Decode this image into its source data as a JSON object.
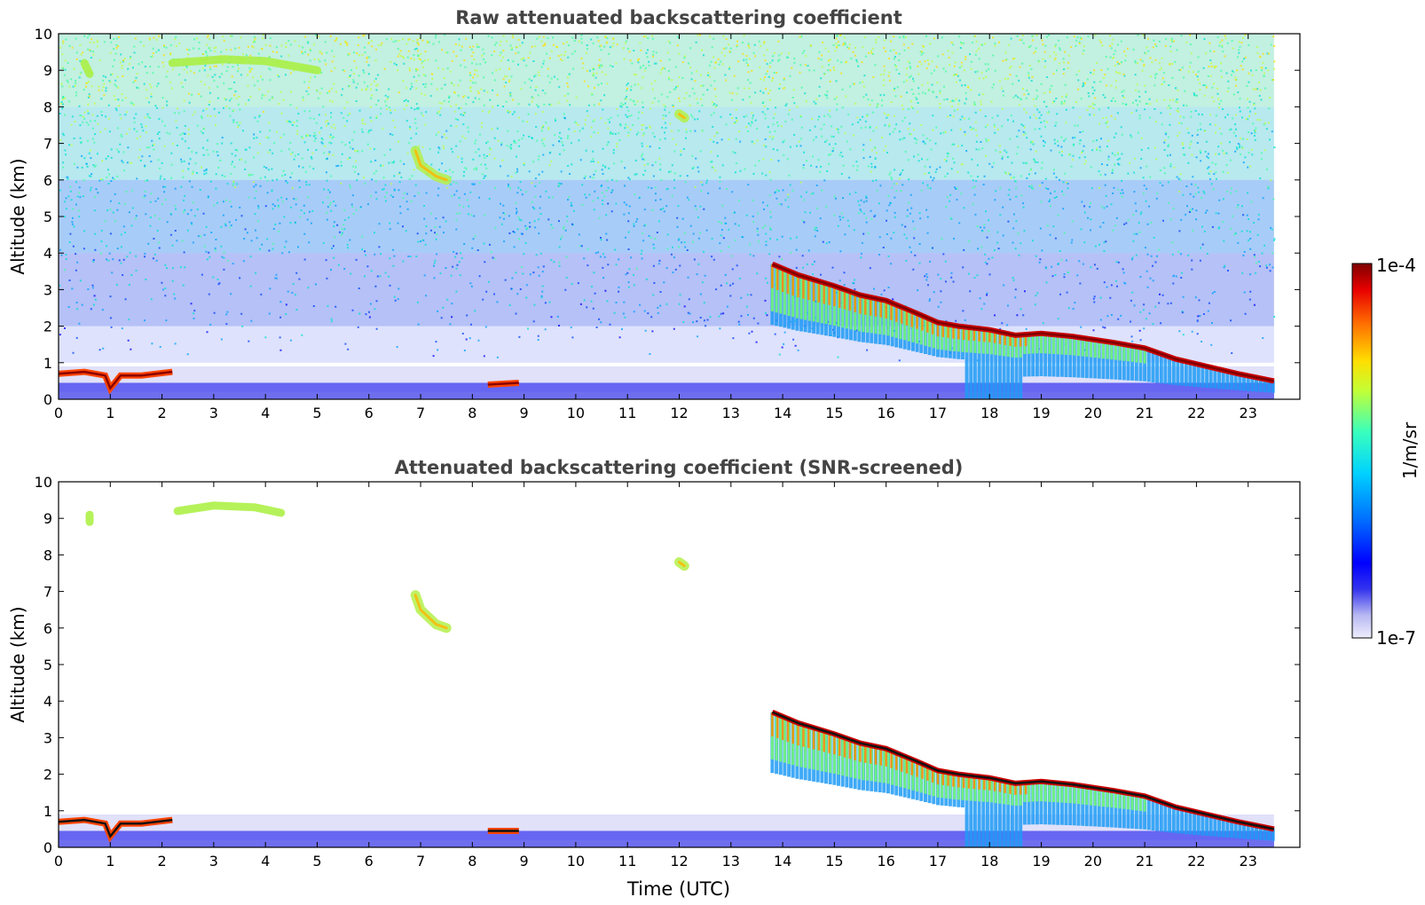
{
  "chart_data": [
    {
      "type": "heatmap",
      "title": "Raw attenuated backscattering coefficient",
      "xlabel": "",
      "ylabel": "Altitude (km)",
      "xlim": [
        0,
        24
      ],
      "ylim": [
        0,
        10
      ],
      "x_ticks": [
        0,
        1,
        2,
        3,
        4,
        5,
        6,
        7,
        8,
        9,
        10,
        11,
        12,
        13,
        14,
        15,
        16,
        17,
        18,
        19,
        20,
        21,
        22,
        23
      ],
      "y_ticks": [
        0,
        1,
        2,
        3,
        4,
        5,
        6,
        7,
        8,
        9,
        10
      ],
      "data_end_time": 23.5,
      "background_noise": true,
      "features": [
        {
          "kind": "boundary_layer_top",
          "points": [
            [
              0,
              0.7
            ],
            [
              0.5,
              0.75
            ],
            [
              0.9,
              0.65
            ],
            [
              1.0,
              0.3
            ],
            [
              1.2,
              0.65
            ],
            [
              1.6,
              0.65
            ],
            [
              2.2,
              0.75
            ]
          ]
        },
        {
          "kind": "boundary_layer_top",
          "points": [
            [
              8.3,
              0.4
            ],
            [
              8.9,
              0.45
            ]
          ]
        },
        {
          "kind": "cloud_base",
          "points": [
            [
              13.8,
              3.7
            ],
            [
              14.3,
              3.4
            ],
            [
              15,
              3.1
            ],
            [
              15.5,
              2.85
            ],
            [
              16,
              2.7
            ],
            [
              16.6,
              2.35
            ],
            [
              17,
              2.1
            ],
            [
              17.4,
              2.0
            ],
            [
              18,
              1.9
            ],
            [
              18.5,
              1.75
            ],
            [
              19,
              1.8
            ],
            [
              19.6,
              1.72
            ],
            [
              20.4,
              1.55
            ],
            [
              21,
              1.4
            ],
            [
              21.6,
              1.1
            ],
            [
              22.2,
              0.9
            ],
            [
              22.8,
              0.7
            ],
            [
              23.5,
              0.5
            ]
          ]
        },
        {
          "kind": "cirrus",
          "points": [
            [
              2.2,
              9.2
            ],
            [
              3.2,
              9.3
            ],
            [
              4,
              9.25
            ],
            [
              5,
              9.0
            ]
          ]
        },
        {
          "kind": "cirrus",
          "points": [
            [
              0.5,
              9.2
            ],
            [
              0.6,
              8.9
            ]
          ]
        },
        {
          "kind": "aerosol_plume",
          "points": [
            [
              6.9,
              6.8
            ],
            [
              7.0,
              6.4
            ],
            [
              7.3,
              6.1
            ],
            [
              7.5,
              6.0
            ]
          ]
        },
        {
          "kind": "aerosol_plume",
          "points": [
            [
              12.0,
              7.8
            ],
            [
              12.1,
              7.7
            ]
          ]
        }
      ]
    },
    {
      "type": "heatmap",
      "title": "Attenuated backscattering coefficient (SNR-screened)",
      "xlabel": "Time (UTC)",
      "ylabel": "Altitude (km)",
      "xlim": [
        0,
        24
      ],
      "ylim": [
        0,
        10
      ],
      "x_ticks": [
        0,
        1,
        2,
        3,
        4,
        5,
        6,
        7,
        8,
        9,
        10,
        11,
        12,
        13,
        14,
        15,
        16,
        17,
        18,
        19,
        20,
        21,
        22,
        23
      ],
      "y_ticks": [
        0,
        1,
        2,
        3,
        4,
        5,
        6,
        7,
        8,
        9,
        10
      ],
      "data_end_time": 23.5,
      "background_noise": false,
      "features": [
        {
          "kind": "boundary_layer_top",
          "points": [
            [
              0,
              0.7
            ],
            [
              0.5,
              0.75
            ],
            [
              0.9,
              0.65
            ],
            [
              1.0,
              0.3
            ],
            [
              1.2,
              0.65
            ],
            [
              1.6,
              0.65
            ],
            [
              2.2,
              0.75
            ]
          ]
        },
        {
          "kind": "boundary_layer_top",
          "points": [
            [
              8.3,
              0.45
            ],
            [
              8.9,
              0.45
            ]
          ]
        },
        {
          "kind": "cloud_base",
          "points": [
            [
              13.8,
              3.7
            ],
            [
              14.3,
              3.4
            ],
            [
              15,
              3.1
            ],
            [
              15.5,
              2.85
            ],
            [
              16,
              2.7
            ],
            [
              16.6,
              2.35
            ],
            [
              17,
              2.1
            ],
            [
              17.4,
              2.0
            ],
            [
              18,
              1.9
            ],
            [
              18.5,
              1.75
            ],
            [
              19,
              1.8
            ],
            [
              19.6,
              1.72
            ],
            [
              20.4,
              1.55
            ],
            [
              21,
              1.4
            ],
            [
              21.6,
              1.1
            ],
            [
              22.2,
              0.9
            ],
            [
              22.8,
              0.7
            ],
            [
              23.5,
              0.5
            ]
          ]
        },
        {
          "kind": "cirrus",
          "points": [
            [
              2.3,
              9.2
            ],
            [
              3.0,
              9.35
            ],
            [
              3.8,
              9.3
            ],
            [
              4.3,
              9.15
            ]
          ]
        },
        {
          "kind": "cirrus",
          "points": [
            [
              0.6,
              9.1
            ],
            [
              0.6,
              8.9
            ]
          ]
        },
        {
          "kind": "aerosol_plume",
          "points": [
            [
              6.9,
              6.9
            ],
            [
              7.0,
              6.5
            ],
            [
              7.3,
              6.1
            ],
            [
              7.5,
              6.0
            ]
          ]
        },
        {
          "kind": "aerosol_plume",
          "points": [
            [
              12.0,
              7.8
            ],
            [
              12.1,
              7.7
            ]
          ]
        }
      ]
    }
  ],
  "colorbar": {
    "label": "1/m/sr",
    "min_label": "1e-7",
    "max_label": "1e-4",
    "scale": "log",
    "colormap": "jet"
  }
}
